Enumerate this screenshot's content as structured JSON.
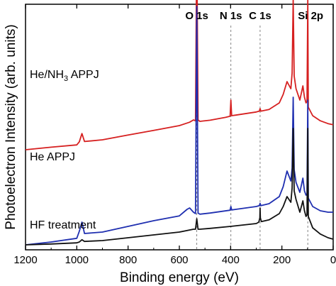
{
  "chart_data": {
    "type": "line",
    "xlabel": "Binding energy (eV)",
    "ylabel": "Photoelectron Intensity (arb. units)",
    "xlim": [
      1200,
      0
    ],
    "x_reversed": true,
    "xticks": [
      1200,
      1000,
      800,
      600,
      400,
      200,
      0
    ],
    "y_tick_labels": false,
    "grid": false,
    "legend": "none",
    "peak_markers": [
      {
        "label": "O 1s",
        "x": 532
      },
      {
        "label": "N 1s",
        "x": 399
      },
      {
        "label": "C 1s",
        "x": 285
      },
      {
        "label": "Si 2p",
        "x": 99
      }
    ],
    "series": [
      {
        "name": "He/NH3 APPJ",
        "label_main": "He/NH",
        "label_sub": "3",
        "label_tail": " APPJ",
        "color": "#d62020",
        "x": [
          1200,
          1100,
          1000,
          990,
          980,
          970,
          900,
          800,
          700,
          600,
          560,
          545,
          537,
          532,
          527,
          520,
          480,
          420,
          402,
          399,
          396,
          380,
          300,
          288,
          285,
          282,
          250,
          210,
          195,
          180,
          165,
          160,
          156,
          152,
          145,
          130,
          118,
          112,
          106,
          102,
          99,
          97,
          80,
          50,
          20,
          0
        ],
        "y": [
          0.7,
          0.79,
          0.87,
          0.98,
          1.27,
          0.99,
          1.05,
          1.22,
          1.38,
          1.55,
          1.67,
          1.75,
          1.72,
          8.1,
          1.75,
          1.7,
          1.74,
          1.84,
          1.88,
          2.45,
          1.9,
          1.92,
          2.03,
          2.06,
          2.15,
          2.06,
          2.12,
          2.35,
          2.65,
          3.1,
          2.85,
          3.4,
          6.0,
          3.3,
          2.85,
          2.45,
          2.95,
          2.55,
          2.35,
          2.4,
          6.0,
          2.2,
          1.9,
          1.72,
          1.62,
          1.58
        ]
      },
      {
        "name": "He APPJ",
        "color": "#1f2fb0",
        "x": [
          1200,
          1100,
          1000,
          990,
          980,
          970,
          900,
          800,
          700,
          600,
          570,
          560,
          545,
          537,
          532,
          527,
          520,
          480,
          402,
          399,
          396,
          380,
          300,
          288,
          285,
          282,
          250,
          210,
          195,
          180,
          165,
          160,
          156,
          152,
          145,
          130,
          118,
          112,
          106,
          102,
          99,
          97,
          80,
          50,
          20,
          0
        ],
        "y": [
          0.1,
          0.2,
          0.33,
          0.58,
          0.9,
          0.5,
          0.55,
          0.75,
          0.95,
          1.12,
          1.35,
          1.4,
          1.25,
          1.2,
          8.5,
          1.22,
          1.18,
          1.22,
          1.32,
          1.45,
          1.33,
          1.35,
          1.45,
          1.48,
          1.56,
          1.48,
          1.55,
          1.8,
          2.15,
          2.7,
          2.35,
          2.8,
          5.3,
          2.75,
          2.3,
          1.95,
          2.45,
          2.0,
          1.85,
          1.9,
          5.2,
          1.75,
          1.45,
          1.3,
          1.25,
          1.25
        ]
      },
      {
        "name": "HF treatment",
        "color": "#111111",
        "x": [
          1200,
          1100,
          1000,
          990,
          980,
          970,
          900,
          800,
          700,
          600,
          545,
          537,
          532,
          527,
          520,
          480,
          400,
          300,
          290,
          286,
          285,
          284,
          280,
          250,
          210,
          195,
          180,
          165,
          160,
          156,
          152,
          145,
          130,
          118,
          112,
          106,
          102,
          99,
          97,
          80,
          50,
          20,
          0
        ],
        "y": [
          0.0,
          0.03,
          0.07,
          0.1,
          0.18,
          0.12,
          0.15,
          0.25,
          0.35,
          0.45,
          0.55,
          0.55,
          0.92,
          0.55,
          0.55,
          0.58,
          0.65,
          0.75,
          0.8,
          0.95,
          1.3,
          0.95,
          0.82,
          0.88,
          1.1,
          1.35,
          1.7,
          1.5,
          2.0,
          4.1,
          1.9,
          1.6,
          1.15,
          1.55,
          1.2,
          1.0,
          1.05,
          4.1,
          1.0,
          0.6,
          0.38,
          0.25,
          0.2
        ]
      }
    ]
  }
}
